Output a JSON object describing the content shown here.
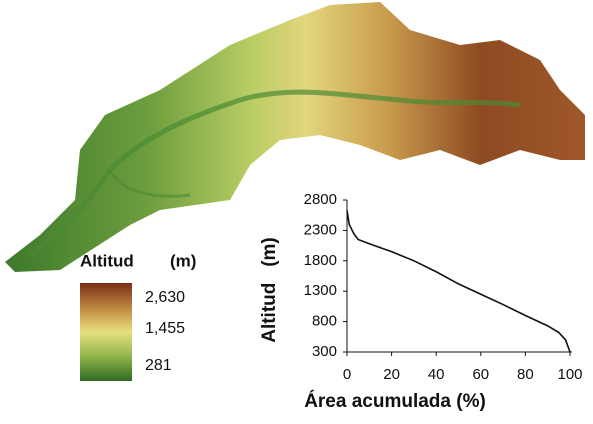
{
  "legend": {
    "title": "Altitud",
    "unit": "(m)",
    "labels": [
      "2,630",
      "1,455",
      "281"
    ]
  },
  "chart_data": {
    "type": "line",
    "x": [
      0,
      1,
      3,
      5,
      10,
      20,
      30,
      40,
      50,
      60,
      70,
      80,
      90,
      95,
      98,
      100
    ],
    "values": [
      2630,
      2400,
      2250,
      2150,
      2080,
      1950,
      1800,
      1620,
      1420,
      1250,
      1080,
      900,
      730,
      620,
      500,
      300
    ],
    "color": "#111111",
    "xlim": [
      0,
      100
    ],
    "ylim": [
      300,
      2800
    ],
    "xticks": [
      0,
      20,
      40,
      60,
      80,
      100
    ],
    "yticks": [
      300,
      800,
      1300,
      1800,
      2300,
      2800
    ],
    "x_label": "Área acumulada (%)",
    "y_label": "Altitud   (m)"
  }
}
